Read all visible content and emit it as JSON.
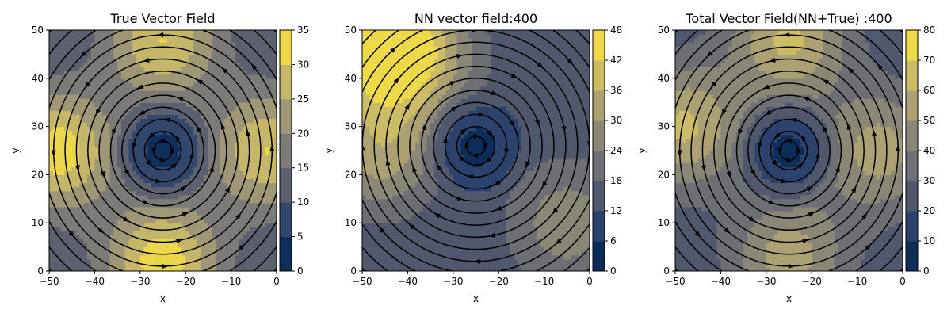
{
  "chart_data": [
    {
      "type": "streamplot-contourf",
      "title": "True Vector Field",
      "xlabel": "x",
      "ylabel": "y",
      "xlim": [
        -50,
        0
      ],
      "ylim": [
        0,
        50
      ],
      "x_ticks": [
        -50,
        -40,
        -30,
        -20,
        -10,
        0
      ],
      "y_ticks": [
        0,
        10,
        20,
        30,
        40,
        50
      ],
      "colorbar": {
        "min": 0,
        "max": 35,
        "ticks": [
          0,
          5,
          10,
          15,
          20,
          25,
          30,
          35
        ]
      },
      "vortex_center": [
        -25,
        25
      ],
      "rotation": "counterclockwise",
      "magnitude_peaks": [
        {
          "x": -25,
          "y": 2,
          "value": 33
        },
        {
          "x": -25,
          "y": 48,
          "value": 30
        },
        {
          "x": -48,
          "y": 25,
          "value": 33
        },
        {
          "x": -2,
          "y": 25,
          "value": 30
        }
      ]
    },
    {
      "type": "streamplot-contourf",
      "title": "NN vector field:400",
      "xlabel": "x",
      "ylabel": "y",
      "xlim": [
        -50,
        0
      ],
      "ylim": [
        0,
        50
      ],
      "x_ticks": [
        -50,
        -40,
        -30,
        -20,
        -10,
        0
      ],
      "y_ticks": [
        0,
        10,
        20,
        30,
        40,
        50
      ],
      "colorbar": {
        "min": 0,
        "max": 48,
        "ticks": [
          0,
          6,
          12,
          18,
          24,
          30,
          36,
          42,
          48
        ]
      },
      "vortex_center": [
        -25,
        26
      ],
      "rotation": "clockwise",
      "magnitude_peaks": [
        {
          "x": -48,
          "y": 48,
          "value": 44
        },
        {
          "x": -38,
          "y": 45,
          "value": 36
        },
        {
          "x": -46,
          "y": 25,
          "value": 33
        },
        {
          "x": -5,
          "y": 10,
          "value": 28
        }
      ]
    },
    {
      "type": "streamplot-contourf",
      "title": "Total Vector Field(NN+True) :400",
      "xlabel": "x",
      "ylabel": "y",
      "xlim": [
        -50,
        0
      ],
      "ylim": [
        0,
        50
      ],
      "x_ticks": [
        -50,
        -40,
        -30,
        -20,
        -10,
        0
      ],
      "y_ticks": [
        0,
        10,
        20,
        30,
        40,
        50
      ],
      "colorbar": {
        "min": 0,
        "max": 80,
        "ticks": [
          0,
          10,
          20,
          30,
          40,
          50,
          60,
          70,
          80
        ]
      },
      "vortex_center": [
        -25,
        25
      ],
      "rotation": "counterclockwise",
      "magnitude_peaks": [
        {
          "x": -25,
          "y": 48,
          "value": 62
        },
        {
          "x": -48,
          "y": 30,
          "value": 62
        },
        {
          "x": -5,
          "y": 25,
          "value": 55
        },
        {
          "x": -25,
          "y": 3,
          "value": 55
        }
      ]
    }
  ],
  "colors": {
    "cividis": [
      "#00224e",
      "#233e6c",
      "#575c6d",
      "#7c7b78",
      "#a59c74",
      "#d3c064",
      "#fee838"
    ],
    "stream": "#000000"
  }
}
